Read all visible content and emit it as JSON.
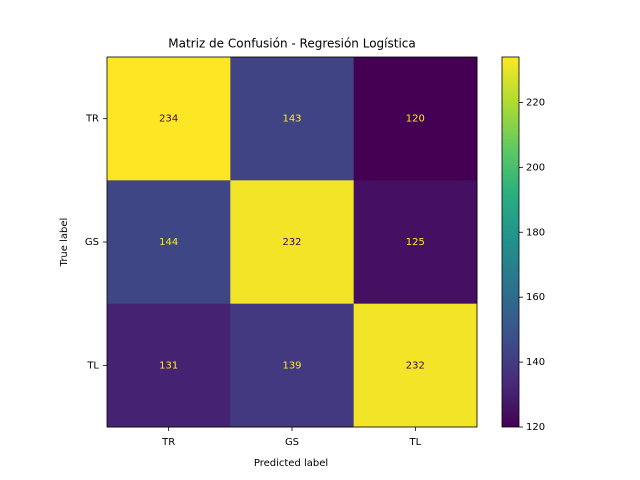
{
  "chart_data": {
    "type": "heatmap",
    "title": "Matriz de Confusión - Regresión Logística",
    "xlabel": "Predicted label",
    "ylabel": "True label",
    "x_categories": [
      "TR",
      "GS",
      "TL"
    ],
    "y_categories": [
      "TR",
      "GS",
      "TL"
    ],
    "values": [
      [
        234,
        143,
        120
      ],
      [
        144,
        232,
        125
      ],
      [
        131,
        139,
        232
      ]
    ],
    "colormap": "viridis",
    "clim": [
      120,
      234
    ],
    "cticks": [
      120,
      140,
      160,
      180,
      200,
      220
    ]
  }
}
